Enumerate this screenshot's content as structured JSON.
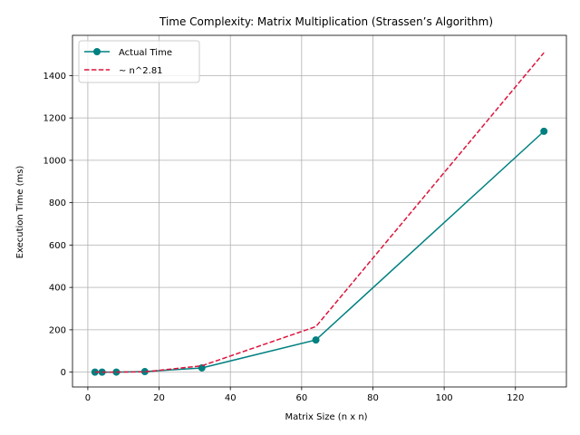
{
  "chart_data": {
    "type": "line",
    "title": "Time Complexity: Matrix Multiplication (Strassen’s Algorithm)",
    "xlabel": "Matrix Size (n x n)",
    "ylabel": "Execution Time (ms)",
    "xlim": [
      -4.3,
      134.3
    ],
    "ylim": [
      -70,
      1590
    ],
    "xticks": [
      0,
      20,
      40,
      60,
      80,
      100,
      120
    ],
    "yticks": [
      0,
      200,
      400,
      600,
      800,
      1000,
      1200,
      1400
    ],
    "grid": true,
    "legend_position": "top-left",
    "x": [
      2,
      4,
      8,
      16,
      32,
      64,
      128
    ],
    "series": [
      {
        "name": "Actual Time",
        "values": [
          0.01,
          0.05,
          0.3,
          2.5,
          20,
          152,
          1137
        ],
        "color": "#008080",
        "style": "solid",
        "marker": "circle"
      },
      {
        "name": "~ n^2.81",
        "values": [
          0.0,
          0.03,
          0.2,
          1.4,
          30,
          215,
          1508
        ],
        "color": "#dc143c",
        "style": "dashed",
        "marker": "none"
      }
    ]
  }
}
